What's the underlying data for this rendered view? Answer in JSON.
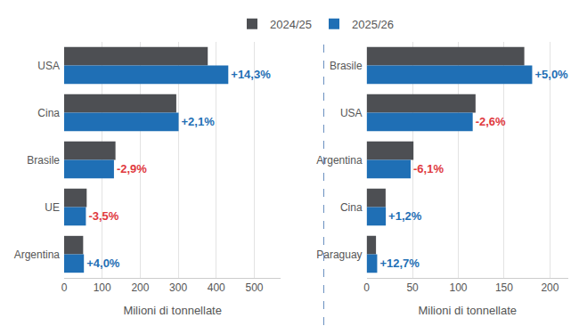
{
  "chart_data": [
    {
      "type": "bar",
      "orientation": "horizontal",
      "categories": [
        "USA",
        "Cina",
        "Brasile",
        "UE",
        "Argentina"
      ],
      "series": [
        {
          "name": "2024/25",
          "color": "#4d4f53",
          "values": [
            377.6,
            294.9,
            135.0,
            59.3,
            50.0
          ]
        },
        {
          "name": "2025/26",
          "color": "#1f6fb5",
          "values": [
            431.6,
            301.0,
            131.0,
            57.2,
            52.0
          ],
          "changes": [
            {
              "value": 14.3,
              "label": "+14,3%"
            },
            {
              "value": 2.1,
              "label": "+2,1%"
            },
            {
              "value": -2.9,
              "label": "-2,9%"
            },
            {
              "value": -3.5,
              "label": "-3,5%"
            },
            {
              "value": 4.0,
              "label": "+4,0%"
            }
          ]
        }
      ],
      "xlabel": "Milioni di tonnellate",
      "xlim": [
        0,
        570
      ],
      "xticks": [
        0,
        100,
        200,
        300,
        400,
        500
      ],
      "grid": true,
      "legend": "top"
    },
    {
      "type": "bar",
      "orientation": "horizontal",
      "categories": [
        "Brasile",
        "USA",
        "Argentina",
        "Cina",
        "Paraguay"
      ],
      "series": [
        {
          "name": "2024/25",
          "color": "#4d4f53",
          "values": [
            172.0,
            118.8,
            51.1,
            20.7,
            10.2
          ]
        },
        {
          "name": "2025/26",
          "color": "#1f6fb5",
          "values": [
            180.6,
            115.7,
            48.0,
            20.9,
            11.5
          ],
          "changes": [
            {
              "value": 5.0,
              "label": "+5,0%"
            },
            {
              "value": -2.6,
              "label": "-2,6%"
            },
            {
              "value": -6.1,
              "label": "-6,1%"
            },
            {
              "value": 1.2,
              "label": "+1,2%"
            },
            {
              "value": 12.7,
              "label": "+12,7%"
            }
          ]
        }
      ],
      "xlabel": "Milioni di tonnellate",
      "xlim": [
        0,
        220
      ],
      "xticks": [
        0,
        50,
        100,
        150,
        200
      ],
      "grid": true,
      "legend": "top"
    }
  ]
}
